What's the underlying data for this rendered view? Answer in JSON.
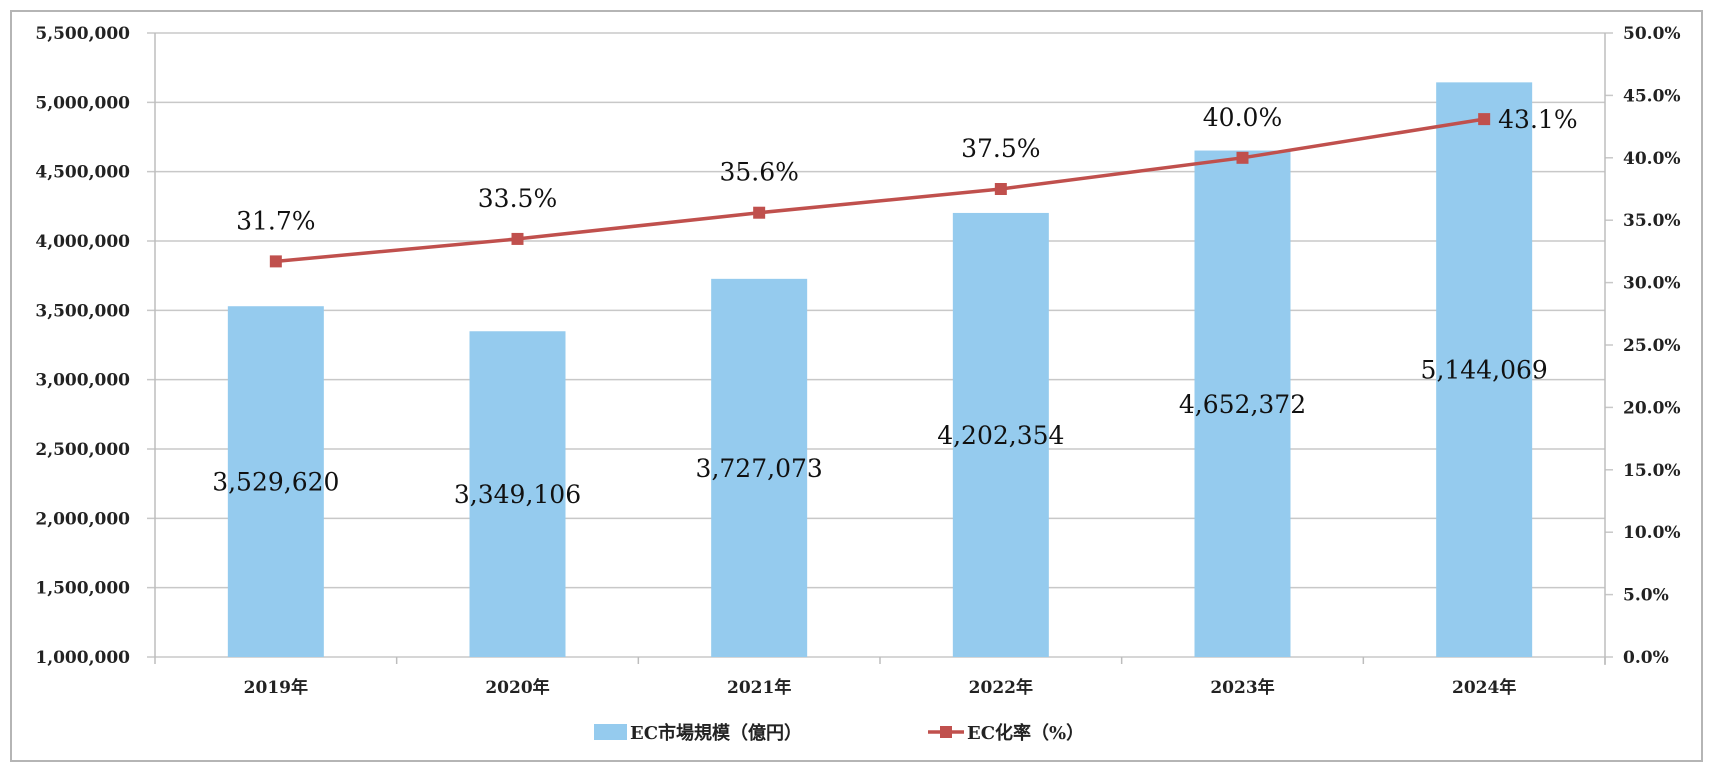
{
  "chart_data": {
    "type": "bar+line",
    "categories": [
      "2019年",
      "2020年",
      "2021年",
      "2022年",
      "2023年",
      "2024年"
    ],
    "series": [
      {
        "name": "EC市場規模（億円）",
        "type": "bar",
        "axis": "left",
        "color": "#95CBEE",
        "values": [
          3529620,
          3349106,
          3727073,
          4202354,
          4652372,
          5144069
        ],
        "labels": [
          "3,529,620",
          "3,349,106",
          "3,727,073",
          "4,202,354",
          "4,652,372",
          "5,144,069"
        ]
      },
      {
        "name": "EC化率（%）",
        "type": "line",
        "axis": "right",
        "color": "#C0504D",
        "marker": "square",
        "values": [
          31.7,
          33.5,
          35.6,
          37.5,
          40.0,
          43.1
        ],
        "labels": [
          "31.7%",
          "33.5%",
          "35.6%",
          "37.5%",
          "40.0%",
          "43.1%"
        ]
      }
    ],
    "left_axis": {
      "ylim": [
        1000000,
        5500000
      ],
      "ticks": [
        "1,000,000",
        "1,500,000",
        "2,000,000",
        "2,500,000",
        "3,000,000",
        "3,500,000",
        "4,000,000",
        "4,500,000",
        "5,000,000",
        "5,500,000"
      ]
    },
    "right_axis": {
      "ylim": [
        0,
        50
      ],
      "ticks": [
        "0.0%",
        "5.0%",
        "10.0%",
        "15.0%",
        "20.0%",
        "25.0%",
        "30.0%",
        "35.0%",
        "40.0%",
        "45.0%",
        "50.0%"
      ]
    },
    "grid": true,
    "legend": "bottom"
  }
}
